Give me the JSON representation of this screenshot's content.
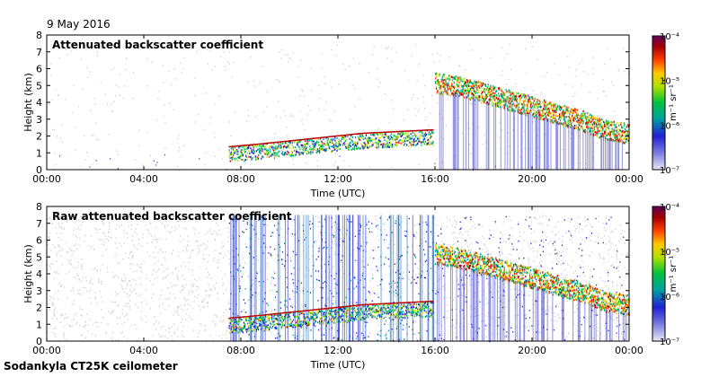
{
  "date_label": "9 May 2016",
  "footer_label": "Sodankyla CT25K ceilometer",
  "chart_data": [
    {
      "type": "heatmap",
      "title": "Attenuated backscatter coefficient",
      "xlabel": "Time (UTC)",
      "ylabel": "Height (km)",
      "x_ticks": [
        "00:00",
        "04:00",
        "08:00",
        "12:00",
        "16:00",
        "20:00",
        "00:00"
      ],
      "y_ticks": [
        "0",
        "1",
        "2",
        "3",
        "4",
        "5",
        "6",
        "7",
        "8"
      ],
      "ylim": [
        0,
        8
      ],
      "grid": false,
      "colorbar": {
        "label": "m⁻¹ sr⁻¹",
        "ticks": [
          "10⁻⁴",
          "10⁻⁵",
          "10⁻⁶",
          "10⁻⁷"
        ],
        "range": [
          1e-07,
          0.0001
        ],
        "scale": "log"
      },
      "features": {
        "boundary_layer_top_km": [
          {
            "time_h": 7.5,
            "height_km": 1.4
          },
          {
            "time_h": 9.0,
            "height_km": 1.6
          },
          {
            "time_h": 11.0,
            "height_km": 1.9
          },
          {
            "time_h": 13.0,
            "height_km": 2.2
          },
          {
            "time_h": 15.8,
            "height_km": 2.4
          }
        ],
        "cloud_layer_km": [
          {
            "time_h": 16.0,
            "height_km": 5.0
          },
          {
            "time_h": 17.0,
            "height_km": 4.8
          },
          {
            "time_h": 18.0,
            "height_km": 4.4
          },
          {
            "time_h": 19.0,
            "height_km": 4.0
          },
          {
            "time_h": 20.0,
            "height_km": 3.6
          },
          {
            "time_h": 21.0,
            "height_km": 3.2
          },
          {
            "time_h": 22.0,
            "height_km": 2.8
          },
          {
            "time_h": 23.0,
            "height_km": 2.2
          },
          {
            "time_h": 24.0,
            "height_km": 2.0
          }
        ]
      }
    },
    {
      "type": "heatmap",
      "title": "Raw attenuated backscatter coefficient",
      "xlabel": "Time (UTC)",
      "ylabel": "Height (km)",
      "x_ticks": [
        "00:00",
        "04:00",
        "08:00",
        "12:00",
        "16:00",
        "20:00",
        "00:00"
      ],
      "y_ticks": [
        "0",
        "1",
        "2",
        "3",
        "4",
        "5",
        "6",
        "7",
        "8"
      ],
      "ylim": [
        0,
        8
      ],
      "grid": false,
      "colorbar": {
        "label": "m⁻¹ sr⁻¹",
        "ticks": [
          "10⁻⁴",
          "10⁻⁵",
          "10⁻⁶",
          "10⁻⁷"
        ],
        "range": [
          1e-07,
          0.0001
        ],
        "scale": "log"
      }
    }
  ]
}
